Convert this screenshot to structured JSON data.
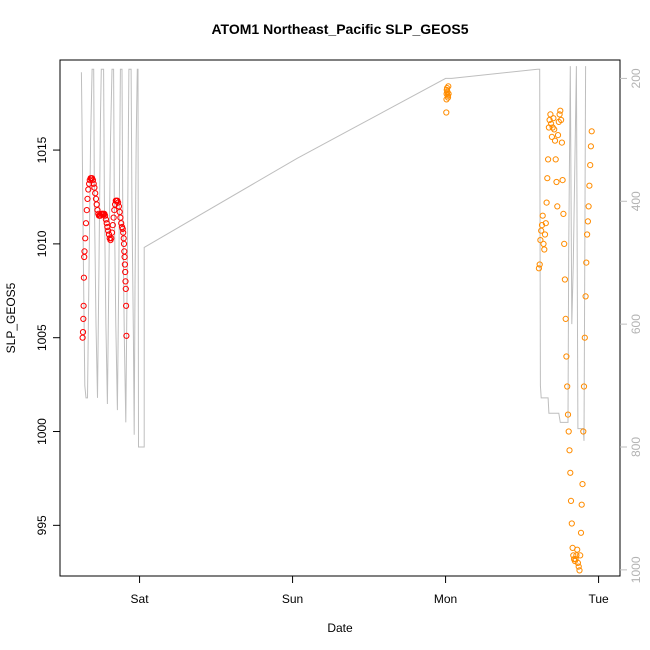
{
  "chart_data": {
    "type": "scatter",
    "title": "ATOM1 Northeast_Pacific SLP_GEOS5",
    "xlabel": "Date",
    "ylabel": "SLP_GEOS5",
    "x_unit": "days since Fri 00:00",
    "x_ticks": [
      {
        "x": 1.0,
        "label": "Sat"
      },
      {
        "x": 2.0,
        "label": "Sun"
      },
      {
        "x": 3.0,
        "label": "Mon"
      },
      {
        "x": 4.0,
        "label": "Tue"
      }
    ],
    "xlim": [
      0.48,
      4.14
    ],
    "ylim": [
      992.3,
      1019.8
    ],
    "y_ticks": [
      995,
      1000,
      1005,
      1010,
      1015
    ],
    "secondary_axis": {
      "label": "",
      "reversed": true,
      "ylim": [
        1010,
        170
      ],
      "ticks": [
        200,
        400,
        600,
        800,
        1000
      ],
      "color": "#bebebe"
    },
    "grid": false,
    "legend": "none",
    "series": [
      {
        "role": "aircraft pressure (secondary axis)",
        "style": "line",
        "color": "#bebebe",
        "points": [
          [
            0.62,
            190
          ],
          [
            0.625,
            300
          ],
          [
            0.633,
            500
          ],
          [
            0.642,
            700
          ],
          [
            0.65,
            720
          ],
          [
            0.66,
            720
          ],
          [
            0.67,
            500
          ],
          [
            0.68,
            300
          ],
          [
            0.69,
            185
          ],
          [
            0.7,
            185
          ],
          [
            0.705,
            400
          ],
          [
            0.715,
            600
          ],
          [
            0.725,
            720
          ],
          [
            0.735,
            500
          ],
          [
            0.745,
            260
          ],
          [
            0.75,
            185
          ],
          [
            0.765,
            185
          ],
          [
            0.77,
            400
          ],
          [
            0.78,
            600
          ],
          [
            0.79,
            730
          ],
          [
            0.8,
            500
          ],
          [
            0.81,
            300
          ],
          [
            0.82,
            185
          ],
          [
            0.83,
            185
          ],
          [
            0.835,
            400
          ],
          [
            0.845,
            600
          ],
          [
            0.855,
            740
          ],
          [
            0.865,
            500
          ],
          [
            0.875,
            185
          ],
          [
            0.885,
            185
          ],
          [
            0.89,
            400
          ],
          [
            0.9,
            620
          ],
          [
            0.91,
            760
          ],
          [
            0.92,
            500
          ],
          [
            0.93,
            185
          ],
          [
            0.945,
            185
          ],
          [
            0.95,
            400
          ],
          [
            0.96,
            620
          ],
          [
            0.965,
            780
          ],
          [
            0.97,
            540
          ],
          [
            0.978,
            300
          ],
          [
            0.985,
            185
          ],
          [
            0.99,
            185
          ],
          [
            0.993,
            800
          ],
          [
            1.03,
            800
          ],
          [
            1.03,
            475
          ],
          [
            2.03,
            330
          ],
          [
            3.0,
            200
          ],
          [
            3.04,
            200
          ],
          [
            3.6,
            185
          ],
          [
            3.615,
            185
          ],
          [
            3.62,
            700
          ],
          [
            3.625,
            720
          ],
          [
            3.67,
            720
          ],
          [
            3.675,
            745
          ],
          [
            3.74,
            745
          ],
          [
            3.75,
            760
          ],
          [
            3.8,
            760
          ],
          [
            3.805,
            480
          ],
          [
            3.815,
            180
          ],
          [
            3.825,
            600
          ],
          [
            3.835,
            500
          ],
          [
            3.855,
            180
          ],
          [
            3.865,
            770
          ],
          [
            3.9,
            770
          ],
          [
            3.905,
            790
          ],
          [
            3.915,
            180
          ]
        ]
      },
      {
        "role": "SLP_GEOS5 (first segment)",
        "style": "points",
        "color": "#ff0000",
        "points": [
          [
            0.628,
            1005.0
          ],
          [
            0.63,
            1005.3
          ],
          [
            0.632,
            1006.0
          ],
          [
            0.634,
            1006.7
          ],
          [
            0.636,
            1008.2
          ],
          [
            0.638,
            1009.3
          ],
          [
            0.64,
            1009.6
          ],
          [
            0.645,
            1010.3
          ],
          [
            0.65,
            1011.1
          ],
          [
            0.655,
            1011.8
          ],
          [
            0.66,
            1012.4
          ],
          [
            0.665,
            1012.9
          ],
          [
            0.67,
            1013.2
          ],
          [
            0.675,
            1013.4
          ],
          [
            0.68,
            1013.5
          ],
          [
            0.685,
            1013.5
          ],
          [
            0.69,
            1013.5
          ],
          [
            0.695,
            1013.4
          ],
          [
            0.7,
            1013.2
          ],
          [
            0.705,
            1013.0
          ],
          [
            0.71,
            1012.7
          ],
          [
            0.715,
            1012.4
          ],
          [
            0.72,
            1012.1
          ],
          [
            0.725,
            1011.8
          ],
          [
            0.73,
            1011.6
          ],
          [
            0.735,
            1011.5
          ],
          [
            0.74,
            1011.5
          ],
          [
            0.745,
            1011.5
          ],
          [
            0.75,
            1011.6
          ],
          [
            0.755,
            1011.6
          ],
          [
            0.76,
            1011.6
          ],
          [
            0.765,
            1011.6
          ],
          [
            0.77,
            1011.6
          ],
          [
            0.775,
            1011.5
          ],
          [
            0.78,
            1011.3
          ],
          [
            0.785,
            1011.1
          ],
          [
            0.79,
            1010.9
          ],
          [
            0.795,
            1010.7
          ],
          [
            0.8,
            1010.5
          ],
          [
            0.805,
            1010.3
          ],
          [
            0.81,
            1010.2
          ],
          [
            0.815,
            1010.3
          ],
          [
            0.82,
            1010.6
          ],
          [
            0.825,
            1011.0
          ],
          [
            0.83,
            1011.4
          ],
          [
            0.835,
            1011.8
          ],
          [
            0.84,
            1012.1
          ],
          [
            0.845,
            1012.3
          ],
          [
            0.85,
            1012.3
          ],
          [
            0.855,
            1012.3
          ],
          [
            0.86,
            1012.2
          ],
          [
            0.865,
            1012.0
          ],
          [
            0.87,
            1011.7
          ],
          [
            0.875,
            1011.4
          ],
          [
            0.88,
            1011.1
          ],
          [
            0.885,
            1010.9
          ],
          [
            0.89,
            1010.8
          ],
          [
            0.893,
            1010.6
          ],
          [
            0.896,
            1010.3
          ],
          [
            0.898,
            1010.0
          ],
          [
            0.9,
            1009.6
          ],
          [
            0.902,
            1009.3
          ],
          [
            0.904,
            1008.9
          ],
          [
            0.906,
            1008.5
          ],
          [
            0.908,
            1008.0
          ],
          [
            0.91,
            1007.6
          ],
          [
            0.912,
            1006.7
          ],
          [
            0.914,
            1005.1
          ]
        ]
      },
      {
        "role": "SLP_GEOS5 (second segment)",
        "style": "points",
        "color": "#ff8c00",
        "points": [
          [
            3.005,
            1017.0
          ],
          [
            3.006,
            1017.7
          ],
          [
            3.007,
            1018.0
          ],
          [
            3.008,
            1018.2
          ],
          [
            3.01,
            1018.3
          ],
          [
            3.012,
            1018.1
          ],
          [
            3.014,
            1017.9
          ],
          [
            3.016,
            1017.8
          ],
          [
            3.018,
            1018.4
          ],
          [
            3.02,
            1018.0
          ],
          [
            3.61,
            1008.7
          ],
          [
            3.615,
            1008.9
          ],
          [
            3.62,
            1010.2
          ],
          [
            3.625,
            1010.7
          ],
          [
            3.63,
            1011.0
          ],
          [
            3.635,
            1011.5
          ],
          [
            3.64,
            1010.0
          ],
          [
            3.645,
            1009.7
          ],
          [
            3.65,
            1010.5
          ],
          [
            3.655,
            1011.1
          ],
          [
            3.66,
            1012.2
          ],
          [
            3.665,
            1013.5
          ],
          [
            3.67,
            1014.5
          ],
          [
            3.675,
            1016.2
          ],
          [
            3.68,
            1016.6
          ],
          [
            3.685,
            1016.9
          ],
          [
            3.69,
            1016.4
          ],
          [
            3.695,
            1015.7
          ],
          [
            3.7,
            1016.2
          ],
          [
            3.705,
            1016.7
          ],
          [
            3.71,
            1016.1
          ],
          [
            3.715,
            1015.5
          ],
          [
            3.72,
            1014.5
          ],
          [
            3.725,
            1013.3
          ],
          [
            3.73,
            1012.0
          ],
          [
            3.735,
            1015.8
          ],
          [
            3.74,
            1016.5
          ],
          [
            3.745,
            1016.9
          ],
          [
            3.75,
            1017.1
          ],
          [
            3.755,
            1016.6
          ],
          [
            3.76,
            1015.4
          ],
          [
            3.765,
            1013.4
          ],
          [
            3.77,
            1011.6
          ],
          [
            3.775,
            1010.0
          ],
          [
            3.78,
            1008.1
          ],
          [
            3.785,
            1006.0
          ],
          [
            3.79,
            1004.0
          ],
          [
            3.795,
            1002.4
          ],
          [
            3.8,
            1000.9
          ],
          [
            3.805,
            1000.0
          ],
          [
            3.81,
            999.0
          ],
          [
            3.815,
            997.8
          ],
          [
            3.82,
            996.3
          ],
          [
            3.825,
            995.1
          ],
          [
            3.83,
            993.8
          ],
          [
            3.835,
            993.4
          ],
          [
            3.84,
            993.2
          ],
          [
            3.845,
            993.1
          ],
          [
            3.85,
            993.2
          ],
          [
            3.855,
            993.4
          ],
          [
            3.86,
            993.7
          ],
          [
            3.865,
            993.0
          ],
          [
            3.87,
            992.8
          ],
          [
            3.875,
            992.6
          ],
          [
            3.88,
            993.4
          ],
          [
            3.885,
            994.6
          ],
          [
            3.89,
            996.1
          ],
          [
            3.895,
            997.2
          ],
          [
            3.9,
            1000.0
          ],
          [
            3.905,
            1002.4
          ],
          [
            3.91,
            1005.0
          ],
          [
            3.915,
            1007.2
          ],
          [
            3.92,
            1009.0
          ],
          [
            3.925,
            1010.5
          ],
          [
            3.93,
            1011.2
          ],
          [
            3.935,
            1012.0
          ],
          [
            3.94,
            1013.1
          ],
          [
            3.945,
            1014.2
          ],
          [
            3.95,
            1015.2
          ],
          [
            3.955,
            1016.0
          ]
        ]
      }
    ]
  }
}
